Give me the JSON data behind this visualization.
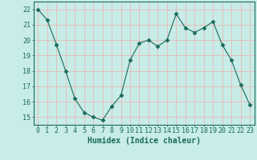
{
  "x": [
    0,
    1,
    2,
    3,
    4,
    5,
    6,
    7,
    8,
    9,
    10,
    11,
    12,
    13,
    14,
    15,
    16,
    17,
    18,
    19,
    20,
    21,
    22,
    23
  ],
  "y": [
    22.0,
    21.3,
    19.7,
    18.0,
    16.2,
    15.3,
    15.0,
    14.8,
    15.7,
    16.4,
    18.7,
    19.8,
    20.0,
    19.6,
    20.0,
    21.7,
    20.8,
    20.5,
    20.8,
    21.2,
    19.7,
    18.7,
    17.1,
    15.8
  ],
  "line_color": "#1a6b5a",
  "marker": "D",
  "marker_size": 2.5,
  "bg_color": "#c8ece8",
  "grid_color": "#e8b8b8",
  "axis_color": "#1a6b5a",
  "xlabel": "Humidex (Indice chaleur)",
  "xlabel_fontsize": 7,
  "tick_fontsize": 6,
  "ylim": [
    14.5,
    22.5
  ],
  "xlim": [
    -0.5,
    23.5
  ],
  "yticks": [
    15,
    16,
    17,
    18,
    19,
    20,
    21,
    22
  ],
  "xticks": [
    0,
    1,
    2,
    3,
    4,
    5,
    6,
    7,
    8,
    9,
    10,
    11,
    12,
    13,
    14,
    15,
    16,
    17,
    18,
    19,
    20,
    21,
    22,
    23
  ]
}
